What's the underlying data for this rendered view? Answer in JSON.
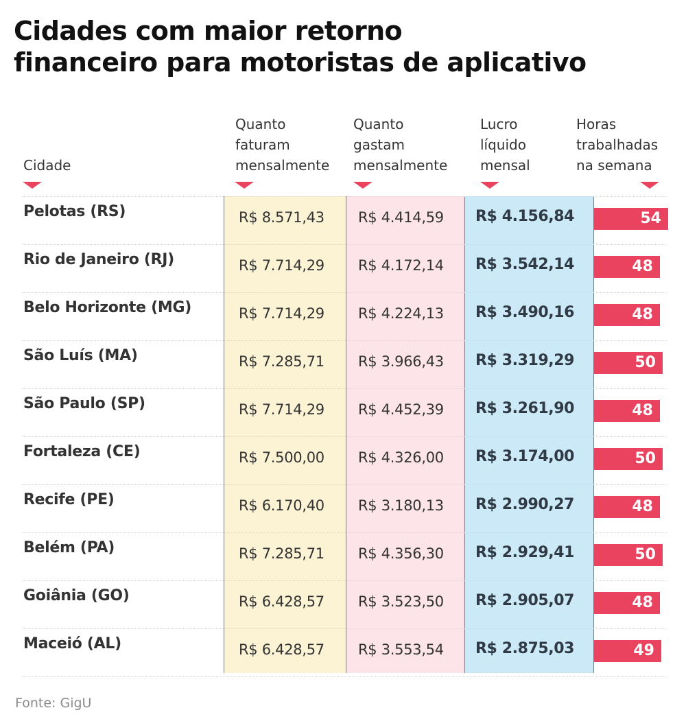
{
  "title": {
    "line1": "Cidades com maior retorno",
    "line2": "financeiro para motoristas de aplicativo"
  },
  "columns": {
    "city": {
      "label": "Cidade"
    },
    "revenue": {
      "lines": [
        "Quanto",
        "faturam",
        "mensalmente"
      ]
    },
    "expenses": {
      "lines": [
        "Quanto",
        "gastam",
        "mensalmente"
      ]
    },
    "profit": {
      "lines": [
        "Lucro",
        "líquido",
        "mensal"
      ]
    },
    "hours": {
      "lines": [
        "Horas",
        "trabalhadas",
        "na semana"
      ]
    }
  },
  "colors": {
    "revenue_bg": "#fbf3d3",
    "expenses_bg": "#fde4e8",
    "profit_bg": "#cbe9f6",
    "accent": "#e9435f"
  },
  "rows": [
    {
      "city": "Pelotas (RS)",
      "revenue": "R$ 8.571,43",
      "expenses": "R$ 4.414,59",
      "profit": "R$ 4.156,84",
      "hours": 54
    },
    {
      "city": "Rio de Janeiro (RJ)",
      "revenue": "R$ 7.714,29",
      "expenses": "R$ 4.172,14",
      "profit": "R$ 3.542,14",
      "hours": 48
    },
    {
      "city": "Belo Horizonte (MG)",
      "revenue": "R$ 7.714,29",
      "expenses": "R$ 4.224,13",
      "profit": "R$ 3.490,16",
      "hours": 48
    },
    {
      "city": "São Luís (MA)",
      "revenue": "R$ 7.285,71",
      "expenses": "R$ 3.966,43",
      "profit": "R$ 3.319,29",
      "hours": 50
    },
    {
      "city": "São Paulo (SP)",
      "revenue": "R$ 7.714,29",
      "expenses": "R$ 4.452,39",
      "profit": "R$ 3.261,90",
      "hours": 48
    },
    {
      "city": "Fortaleza (CE)",
      "revenue": "R$ 7.500,00",
      "expenses": "R$ 4.326,00",
      "profit": "R$ 3.174,00",
      "hours": 50
    },
    {
      "city": "Recife (PE)",
      "revenue": "R$ 6.170,40",
      "expenses": "R$ 3.180,13",
      "profit": "R$ 2.990,27",
      "hours": 48
    },
    {
      "city": "Belém (PA)",
      "revenue": "R$ 7.285,71",
      "expenses": "R$ 4.356,30",
      "profit": "R$ 2.929,41",
      "hours": 50
    },
    {
      "city": "Goiânia (GO)",
      "revenue": "R$ 6.428,57",
      "expenses": "R$ 3.523,50",
      "profit": "R$ 2.905,07",
      "hours": 48
    },
    {
      "city": "Maceió (AL)",
      "revenue": "R$ 6.428,57",
      "expenses": "R$ 3.553,54",
      "profit": "R$ 2.875,03",
      "hours": 49
    }
  ],
  "source": "Fonte: GigU",
  "chart_data": {
    "type": "table",
    "title": "Cidades com maior retorno financeiro para motoristas de aplicativo",
    "columns": [
      "Cidade",
      "Quanto faturam mensalmente",
      "Quanto gastam mensalmente",
      "Lucro líquido mensal",
      "Horas trabalhadas na semana"
    ],
    "categories": [
      "Pelotas (RS)",
      "Rio de Janeiro (RJ)",
      "Belo Horizonte (MG)",
      "São Luís (MA)",
      "São Paulo (SP)",
      "Fortaleza (CE)",
      "Recife (PE)",
      "Belém (PA)",
      "Goiânia (GO)",
      "Maceió (AL)"
    ],
    "series": [
      {
        "name": "Quanto faturam mensalmente (R$)",
        "values": [
          8571.43,
          7714.29,
          7714.29,
          7285.71,
          7714.29,
          7500.0,
          6170.4,
          7285.71,
          6428.57,
          6428.57
        ]
      },
      {
        "name": "Quanto gastam mensalmente (R$)",
        "values": [
          4414.59,
          4172.14,
          4224.13,
          3966.43,
          4452.39,
          4326.0,
          3180.13,
          4356.3,
          3523.5,
          3553.54
        ]
      },
      {
        "name": "Lucro líquido mensal (R$)",
        "values": [
          4156.84,
          3542.14,
          3490.16,
          3319.29,
          3261.9,
          3174.0,
          2990.27,
          2929.41,
          2905.07,
          2875.03
        ]
      },
      {
        "name": "Horas trabalhadas na semana",
        "values": [
          54,
          48,
          48,
          50,
          48,
          50,
          48,
          50,
          48,
          49
        ],
        "display": "bar"
      }
    ],
    "source": "Fonte: GigU"
  }
}
